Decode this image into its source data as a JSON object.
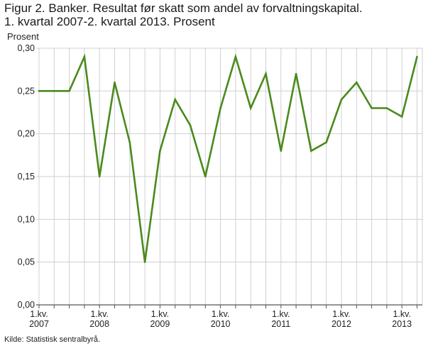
{
  "title_line1": "Figur 2. Banker. Resultat før skatt som andel av forvaltningskapital.",
  "title_line2": "1. kvartal 2007-2. kvartal 2013. Prosent",
  "source": "Kilde: Statistisk sentralbyrå.",
  "chart_data": {
    "type": "line",
    "title": "Figur 2. Banker. Resultat før skatt som andel av forvaltningskapital. 1. kvartal 2007-2. kvartal 2013. Prosent",
    "ylabel": "Prosent",
    "xlabel": "",
    "ylim": [
      0,
      0.3
    ],
    "yticks": [
      "0,00",
      "0,05",
      "0,10",
      "0,15",
      "0,20",
      "0,25",
      "0,30"
    ],
    "xtick_labels": [
      {
        "line1": "1.kv.",
        "line2": "2007"
      },
      {
        "line1": "1.kv.",
        "line2": "2008"
      },
      {
        "line1": "1.kv.",
        "line2": "2009"
      },
      {
        "line1": "1.kv.",
        "line2": "2010"
      },
      {
        "line1": "1.kv.",
        "line2": "2011"
      },
      {
        "line1": "1.kv.",
        "line2": "2012"
      },
      {
        "line1": "1.kv.",
        "line2": "2013"
      }
    ],
    "x": [
      "2007K1",
      "2007K2",
      "2007K3",
      "2007K4",
      "2008K1",
      "2008K2",
      "2008K3",
      "2008K4",
      "2009K1",
      "2009K2",
      "2009K3",
      "2009K4",
      "2010K1",
      "2010K2",
      "2010K3",
      "2010K4",
      "2011K1",
      "2011K2",
      "2011K3",
      "2011K4",
      "2012K1",
      "2012K2",
      "2012K3",
      "2012K4",
      "2013K1",
      "2013K2"
    ],
    "series": [
      {
        "values": [
          0.25,
          0.25,
          0.25,
          0.29,
          0.15,
          0.26,
          0.19,
          0.05,
          0.18,
          0.24,
          0.21,
          0.15,
          0.23,
          0.29,
          0.23,
          0.27,
          0.18,
          0.27,
          0.18,
          0.19,
          0.24,
          0.26,
          0.23,
          0.23,
          0.22,
          0.29
        ]
      }
    ],
    "grid": true,
    "colors": {
      "line": "#4a8a1c",
      "grid": "#d0d0d0",
      "axis": "#555555"
    }
  }
}
